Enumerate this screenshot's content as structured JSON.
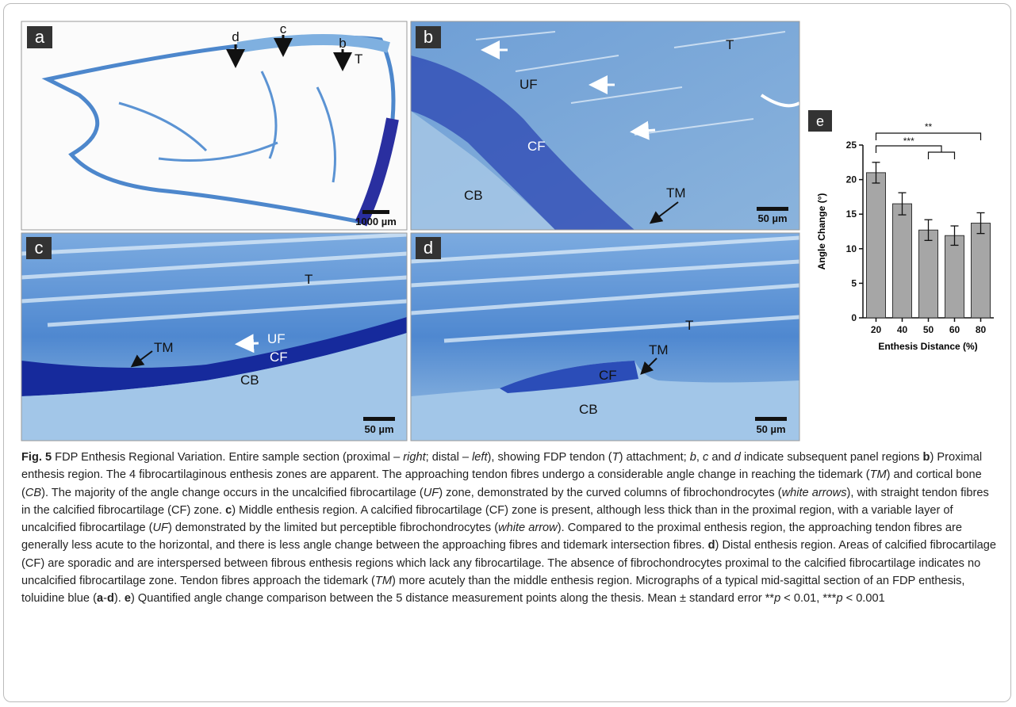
{
  "panels": {
    "a": {
      "label": "a",
      "markers": [
        "d",
        "c",
        "b"
      ],
      "tendon": "T",
      "scale_bar": "1000 µm"
    },
    "b": {
      "label": "b",
      "tendon": "T",
      "uf": "UF",
      "cf": "CF",
      "cb": "CB",
      "tm": "TM",
      "scale_bar": "50 µm"
    },
    "c": {
      "label": "c",
      "tendon": "T",
      "uf": "UF",
      "cf": "CF",
      "cb": "CB",
      "tm": "TM",
      "scale_bar": "50 µm"
    },
    "d": {
      "label": "d",
      "tendon": "T",
      "tm": "TM",
      "cf": "CF",
      "cb": "CB",
      "scale_bar": "50 µm"
    }
  },
  "chart_data": {
    "type": "bar",
    "panel_label": "e",
    "x_label": "Enthesis Distance (%)",
    "y_label": "Angle Change (°)",
    "categories": [
      "20",
      "40",
      "50",
      "60",
      "80"
    ],
    "values": [
      21.0,
      16.5,
      12.7,
      11.9,
      13.7
    ],
    "errors": [
      1.5,
      1.6,
      1.5,
      1.4,
      1.5
    ],
    "color": "#a6a6a6",
    "ylim": [
      0,
      25
    ],
    "yticks": [
      0,
      5,
      10,
      15,
      20,
      25
    ],
    "annotations": [
      "**",
      "***"
    ]
  },
  "caption": [
    {
      "text": "Fig. 5",
      "style": "bold"
    },
    {
      "text": "  FDP Enthesis Regional Variation. Entire sample section (proximal – "
    },
    {
      "text": "right",
      "style": "italic"
    },
    {
      "text": "; distal – "
    },
    {
      "text": "left",
      "style": "italic"
    },
    {
      "text": "), showing FDP tendon ("
    },
    {
      "text": "T",
      "style": "italic"
    },
    {
      "text": ") attachment; "
    },
    {
      "text": "b",
      "style": "italic"
    },
    {
      "text": ", "
    },
    {
      "text": "c",
      "style": "italic"
    },
    {
      "text": " and "
    },
    {
      "text": "d",
      "style": "italic"
    },
    {
      "text": " indicate subsequent panel regions "
    },
    {
      "text": "b",
      "style": "bold"
    },
    {
      "text": ") Proximal enthesis region. The 4 fibrocartilaginous enthesis zones are apparent. The approaching tendon fibres undergo a considerable angle change in reaching the tidemark ("
    },
    {
      "text": "TM",
      "style": "italic"
    },
    {
      "text": ") and cortical bone ("
    },
    {
      "text": "CB",
      "style": "italic"
    },
    {
      "text": "). The majority of the angle change occurs in the uncalcified fibrocartilage ("
    },
    {
      "text": "UF",
      "style": "italic"
    },
    {
      "text": ") zone, demonstrated by the curved columns of fibrochondrocytes ("
    },
    {
      "text": "white arrows",
      "style": "italic"
    },
    {
      "text": "), with straight tendon fibres in the calcified fibrocartilage (CF) zone. "
    },
    {
      "text": "c",
      "style": "bold"
    },
    {
      "text": ") Middle enthesis region. A calcified fibrocartilage (CF) zone is present, although less thick than in the proximal region, with a variable layer of uncalcified fibrocartilage ("
    },
    {
      "text": "UF",
      "style": "italic"
    },
    {
      "text": ") demonstrated by the limited but perceptible fibrochondrocytes ("
    },
    {
      "text": "white arrow",
      "style": "italic"
    },
    {
      "text": "). Compared to the proximal enthesis region, the approaching tendon fibres are generally less acute to the horizontal, and there is less angle change between the approaching fibres and tidemark intersection fibres. "
    },
    {
      "text": "d",
      "style": "bold"
    },
    {
      "text": ") Distal enthesis region. Areas of calcified fibrocartilage (CF) are sporadic and are interspersed between fibrous enthesis regions which lack any fibrocartilage. The absence of fibrochondrocytes proximal to the calcified fibrocartilage indicates no uncalcified fibrocartilage zone. Tendon fibres approach the tidemark ("
    },
    {
      "text": "TM",
      "style": "italic"
    },
    {
      "text": ") more acutely than the middle enthesis region. Micrographs of a typical mid-sagittal section of an FDP enthesis, toluidine blue ("
    },
    {
      "text": "a",
      "style": "bold"
    },
    {
      "text": "-"
    },
    {
      "text": "d",
      "style": "bold"
    },
    {
      "text": "). "
    },
    {
      "text": "e",
      "style": "bold"
    },
    {
      "text": ") Quantified angle change comparison between the 5 distance measurement points along the thesis. Mean ± standard error **"
    },
    {
      "text": "p",
      "style": "italic"
    },
    {
      "text": " < 0.01, ***"
    },
    {
      "text": "p",
      "style": "italic"
    },
    {
      "text": " < 0.001"
    }
  ]
}
